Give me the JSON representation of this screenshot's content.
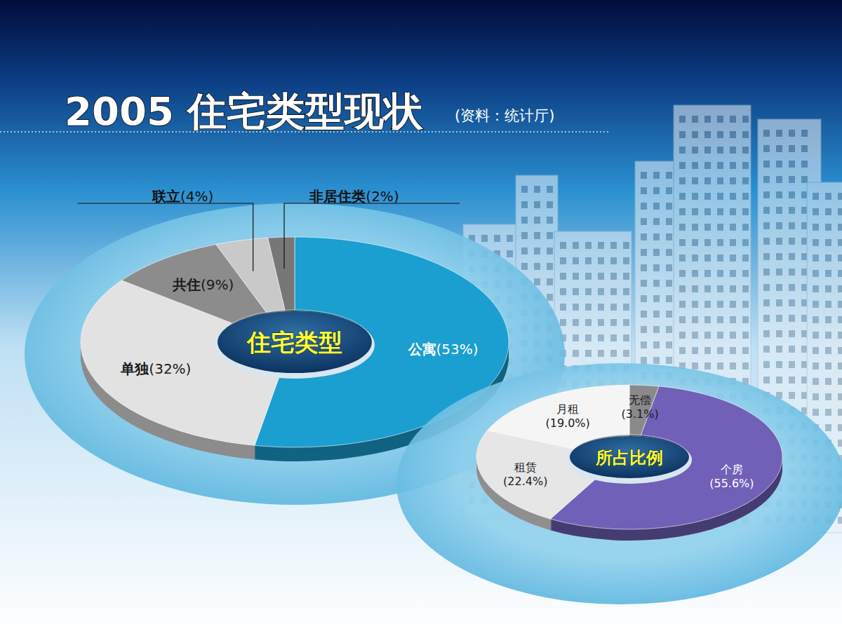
{
  "page": {
    "title": "2005 住宅类型现状",
    "source": "(资料：统计厅)"
  },
  "chart_data": [
    {
      "type": "pie",
      "title": "住宅类型",
      "categories": [
        "公寓",
        "单独",
        "共住",
        "联立",
        "非居住类"
      ],
      "values": [
        53,
        32,
        9,
        4,
        2
      ],
      "value_labels": [
        "(53%)",
        "(32%)",
        "(9%)",
        "(4%)",
        "(2%)"
      ],
      "colors": [
        "#1a9fd0",
        "#e2e2e2",
        "#8c8c8c",
        "#c9c9c9",
        "#777777"
      ],
      "data_labels": true
    },
    {
      "type": "pie",
      "title": "所占比例",
      "categories": [
        "无偿",
        "个房",
        "租赁",
        "月租"
      ],
      "values": [
        3.1,
        55.6,
        22.4,
        19.0
      ],
      "value_labels": [
        "(3.1%)",
        "(55.6%)",
        "(22.4%)",
        "(19.0%)"
      ],
      "colors": [
        "#8a8a8a",
        "#7060b8",
        "#e6e6e6",
        "#f5f5f5"
      ],
      "data_labels": true
    }
  ]
}
